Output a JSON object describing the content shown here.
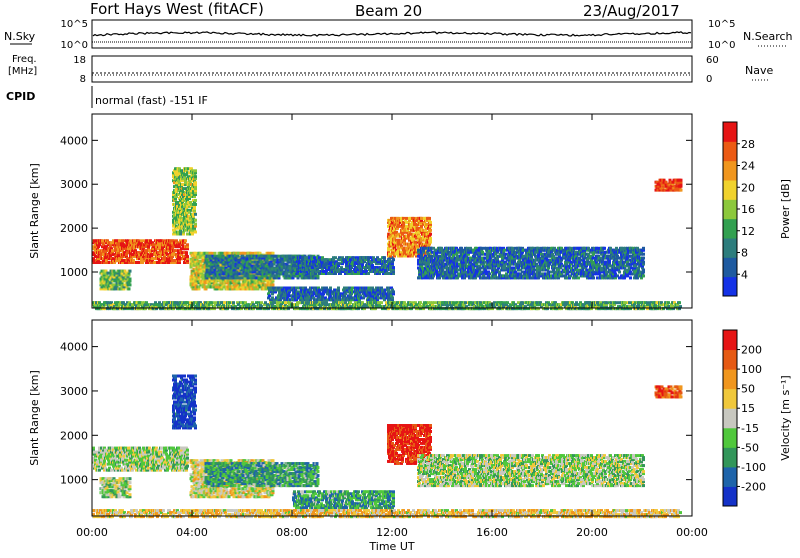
{
  "header": {
    "site": "Fort Hays West (fitACF)",
    "beam": "Beam 20",
    "date": "23/Aug/2017"
  },
  "strips": {
    "nsky_label": "N.Sky",
    "nsky_ticks": [
      "10^5",
      "10^0"
    ],
    "nsearch_label": "N.Search",
    "nsearch_ticks": [
      "10^5",
      "10^0"
    ],
    "freq_label_line1": "Freq.",
    "freq_label_line2": "[MHz]",
    "freq_ticks": [
      "18",
      "8"
    ],
    "nave_label": "Nave",
    "nave_ticks": [
      "60",
      "0"
    ],
    "cpid_label": "CPID",
    "cpid_value": "normal (fast) -151 IF"
  },
  "chart_data": [
    {
      "type": "heatmap",
      "title": "",
      "ylabel": "Slant Range [km]",
      "xlabel": "",
      "ylim": [
        180,
        4600
      ],
      "yticks": [
        1000,
        2000,
        3000,
        4000
      ],
      "xlim": [
        0,
        24
      ],
      "xticks": [
        "00:00",
        "04:00",
        "08:00",
        "12:00",
        "16:00",
        "20:00",
        "00:00"
      ],
      "colorbar": {
        "label": "Power [dB]",
        "ticks": [
          "4",
          "8",
          "12",
          "16",
          "20",
          "24",
          "28"
        ],
        "colors": [
          "#1432e6",
          "#1e5aa0",
          "#2d7d7d",
          "#32a050",
          "#8cc83c",
          "#f0d22d",
          "#f0961e",
          "#eb5a14",
          "#e61414"
        ]
      },
      "regions": [
        {
          "t0": 0.0,
          "t1": 3.8,
          "r0": 1250,
          "r1": 1750,
          "level": 0.85
        },
        {
          "t0": 0.3,
          "t1": 1.5,
          "r0": 650,
          "r1": 1100,
          "level": 0.45
        },
        {
          "t0": 3.2,
          "t1": 4.1,
          "r0": 1900,
          "r1": 3400,
          "level": 0.5
        },
        {
          "t0": 3.9,
          "t1": 7.2,
          "r0": 650,
          "r1": 1500,
          "level": 0.6
        },
        {
          "t0": 4.5,
          "t1": 9.0,
          "r0": 900,
          "r1": 1400,
          "level": 0.25
        },
        {
          "t0": 8.0,
          "t1": 12.0,
          "r0": 1000,
          "r1": 1400,
          "level": 0.2
        },
        {
          "t0": 7.0,
          "t1": 12.0,
          "r0": 400,
          "r1": 700,
          "level": 0.2
        },
        {
          "t0": 11.8,
          "t1": 13.5,
          "r0": 1400,
          "r1": 2300,
          "level": 0.75
        },
        {
          "t0": 13.0,
          "t1": 22.0,
          "r0": 900,
          "r1": 1600,
          "level": 0.2
        },
        {
          "t0": 22.5,
          "t1": 23.5,
          "r0": 2900,
          "r1": 3150,
          "level": 0.9
        },
        {
          "t0": 0.0,
          "t1": 23.5,
          "r0": 200,
          "r1": 380,
          "level": 0.4
        }
      ]
    },
    {
      "type": "heatmap",
      "title": "",
      "ylabel": "Slant Range [km]",
      "xlabel": "Time UT",
      "ylim": [
        180,
        4600
      ],
      "yticks": [
        1000,
        2000,
        3000,
        4000
      ],
      "xlim": [
        0,
        24
      ],
      "xticks": [
        "00:00",
        "04:00",
        "08:00",
        "12:00",
        "16:00",
        "20:00",
        "00:00"
      ],
      "colorbar": {
        "label": "Velocity [m s⁻¹]",
        "ticks": [
          "200",
          "100",
          "50",
          "15",
          "-15",
          "-50",
          "-100",
          "-200"
        ],
        "colors": [
          "#1432c8",
          "#1e64aa",
          "#32965a",
          "#50c83c",
          "#c8c8c0",
          "#f0c83c",
          "#f0961e",
          "#e65a14",
          "#e61414"
        ]
      },
      "regions": [
        {
          "t0": 0.0,
          "t1": 3.8,
          "r0": 1250,
          "r1": 1750,
          "level": 0.45
        },
        {
          "t0": 0.3,
          "t1": 1.5,
          "r0": 650,
          "r1": 1100,
          "level": 0.45
        },
        {
          "t0": 3.2,
          "t1": 4.1,
          "r0": 2200,
          "r1": 3400,
          "level": 0.05
        },
        {
          "t0": 3.9,
          "t1": 7.2,
          "r0": 650,
          "r1": 1500,
          "level": 0.55
        },
        {
          "t0": 4.5,
          "t1": 9.0,
          "r0": 900,
          "r1": 1400,
          "level": 0.3
        },
        {
          "t0": 8.0,
          "t1": 12.0,
          "r0": 400,
          "r1": 800,
          "level": 0.3
        },
        {
          "t0": 11.8,
          "t1": 13.5,
          "r0": 1400,
          "r1": 2300,
          "level": 0.95
        },
        {
          "t0": 13.0,
          "t1": 22.0,
          "r0": 900,
          "r1": 1600,
          "level": 0.45
        },
        {
          "t0": 22.5,
          "t1": 23.5,
          "r0": 2900,
          "r1": 3150,
          "level": 0.85
        },
        {
          "t0": 0.0,
          "t1": 23.5,
          "r0": 200,
          "r1": 380,
          "level": 0.6
        }
      ]
    }
  ]
}
